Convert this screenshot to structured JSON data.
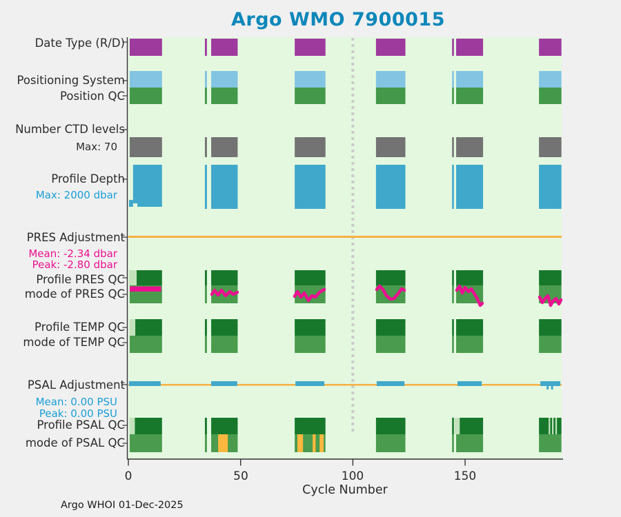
{
  "title": {
    "text": "Argo WMO 7900015",
    "color": "#0d87ba"
  },
  "footer": {
    "text": "Argo WHOI 01-Dec-2025"
  },
  "labels": {
    "date_type": "Date Type (R/D)",
    "positioning_system": "Positioning System",
    "position_qc": "Position QC",
    "number_ctd_levels": "Number CTD levels",
    "ctd_max": "Max: 70",
    "profile_depth": "Profile Depth",
    "depth_max": "Max: 2000 dbar",
    "pres_adjustment": "PRES Adjustment",
    "pres_mean": "Mean: -2.34 dbar",
    "pres_peak": "Peak: -2.80 dbar",
    "profile_pres_qc": "Profile PRES QC",
    "mode_pres_qc": "mode of PRES QC",
    "profile_temp_qc": "Profile TEMP QC",
    "mode_temp_qc": "mode of TEMP QC",
    "psal_adjustment": "PSAL Adjustment",
    "psal_mean": "Mean: 0.00 PSU",
    "psal_peak": "Peak: 0.00 PSU",
    "profile_psal_qc": "Profile PSAL QC",
    "mode_psal_qc": "mode of PSAL QC"
  },
  "colors": {
    "title": "#0d87ba",
    "magenta_text": "#ea1190",
    "blue_text": "#1b9ed6",
    "axis": "#333333"
  },
  "chart_data": {
    "type": "heatmap",
    "title": "Argo WMO 7900015",
    "xlabel": "Cycle Number",
    "x_ticks": [
      0,
      50,
      100,
      150
    ],
    "x_range": [
      0,
      193
    ],
    "grid": false,
    "plot_bg": "#e4f8e0",
    "reference_line": {
      "x_cycle": 100,
      "color": "#cbcbcb",
      "y": [
        55,
        628
      ]
    },
    "segments": [
      [
        0.6,
        15.0
      ],
      [
        34.1,
        35.0
      ],
      [
        36.9,
        48.7
      ],
      [
        74.1,
        87.8
      ],
      [
        110.3,
        123.4
      ],
      [
        144.2,
        145.0
      ],
      [
        146.0,
        158.0
      ],
      [
        182.9,
        192.9
      ]
    ],
    "bands": [
      {
        "id": "date-type",
        "label": "Date Type (R/D)",
        "row": "datetype",
        "color": "#9e3a9e"
      },
      {
        "id": "positioning-system",
        "label": "Positioning System",
        "row": "possys",
        "color": "#82c4e2"
      },
      {
        "id": "position-qc",
        "label": "Position QC",
        "row": "posqc",
        "color": "#43984a"
      },
      {
        "id": "number-ctd-levels",
        "label": "Number CTD levels",
        "max_levels": 70,
        "row": "ctd",
        "color": "#737373"
      },
      {
        "id": "profile-depth",
        "label": "Profile Depth",
        "max_dbar": 2000,
        "row": "depth",
        "color": "#40a8ca"
      },
      {
        "id": "profile-pres-qc",
        "label": "Profile PRES QC",
        "row": "presT",
        "color": "#17782c"
      },
      {
        "id": "mode-pres-qc",
        "label": "mode of PRES QC",
        "row": "presM",
        "color": "#4a9b4d"
      },
      {
        "id": "profile-temp-qc",
        "label": "Profile TEMP QC",
        "row": "tempT",
        "color": "#17782c"
      },
      {
        "id": "mode-temp-qc",
        "label": "mode of TEMP QC",
        "row": "tempM",
        "color": "#4a9b4d"
      },
      {
        "id": "profile-psal-qc",
        "label": "Profile PSAL QC",
        "row": "psalT",
        "color": "#17782c"
      },
      {
        "id": "mode-psal-qc",
        "label": "mode of PSAL QC",
        "row": "psalM",
        "color": "#4a9b4d"
      }
    ],
    "pale_color": "#c3e2bc",
    "pale_stripes": [
      {
        "row": "presT",
        "c": [
          0.3,
          3.7
        ]
      },
      {
        "row": "tempT",
        "c": [
          0.6,
          3.1
        ]
      },
      {
        "row": "psalT",
        "c": [
          0.6,
          2.9
        ]
      },
      {
        "row": "psalT",
        "c": [
          145.3,
          147.6
        ]
      },
      {
        "row": "psalT",
        "c": [
          187.2,
          187.9
        ]
      },
      {
        "row": "psalT",
        "c": [
          188.7,
          189.4
        ]
      },
      {
        "row": "psalT",
        "c": [
          190.2,
          190.9
        ]
      }
    ],
    "orange_color": "#fcb83f",
    "orange_stripes": [
      {
        "row": "psalM",
        "c": [
          40.0,
          44.3
        ]
      },
      {
        "row": "psalM",
        "c": [
          75.3,
          77.8
        ]
      },
      {
        "row": "psalM",
        "c": [
          82.1,
          83.4
        ]
      },
      {
        "row": "psalM",
        "c": [
          85.2,
          87.0
        ]
      }
    ],
    "depth_seg1": [
      {
        "c": [
          0.3,
          2.1
        ],
        "y": [
          290,
          300
        ]
      },
      {
        "c": [
          2.1,
          4.0
        ],
        "y": [
          239,
          295
        ]
      },
      {
        "c": [
          4.0,
          15.0
        ],
        "y": [
          239,
          300
        ]
      }
    ],
    "pres_adjustment": {
      "mean_dbar": -2.34,
      "peak_dbar": -2.8,
      "zero_line": {
        "y": 343.5,
        "color": "#f7b041",
        "width": 3
      },
      "line_color": "#ea1190",
      "flat_bar": {
        "x": [
          188,
          233.5
        ],
        "y": [
          415.5,
          423
        ]
      },
      "profile_paths": [
        [
          [
            307,
            427
          ],
          [
            311,
            421
          ],
          [
            316,
            428
          ],
          [
            321,
            421
          ],
          [
            327,
            429
          ],
          [
            333,
            423
          ],
          [
            338,
            427
          ],
          [
            344,
            424
          ]
        ],
        [
          [
            427,
            430
          ],
          [
            431,
            423
          ],
          [
            436,
            431
          ],
          [
            441,
            425
          ],
          [
            447,
            436
          ],
          [
            452,
            429
          ],
          [
            457,
            431
          ],
          [
            463,
            424
          ],
          [
            470,
            420
          ]
        ],
        [
          [
            546,
            420
          ],
          [
            550,
            415
          ],
          [
            555,
            420
          ],
          [
            560,
            429
          ],
          [
            566,
            434
          ],
          [
            571,
            433
          ],
          [
            577,
            426
          ],
          [
            582,
            419
          ],
          [
            586,
            421
          ]
        ],
        [
          [
            662,
            421
          ],
          [
            666,
            415
          ],
          [
            670,
            425
          ],
          [
            674,
            417
          ],
          [
            679,
            423
          ],
          [
            683,
            419
          ],
          [
            688,
            427
          ],
          [
            692,
            434
          ],
          [
            696,
            443
          ],
          [
            699,
            440
          ]
        ],
        [
          [
            782,
            431
          ],
          [
            786,
            439
          ],
          [
            790,
            433
          ],
          [
            794,
            429
          ],
          [
            798,
            443
          ],
          [
            802,
            436
          ],
          [
            806,
            433
          ],
          [
            810,
            441
          ],
          [
            813,
            435
          ]
        ]
      ]
    },
    "psal_adjustment": {
      "mean_psu": 0.0,
      "peak_psu": 0.0,
      "zero_line": {
        "y": 558.2,
        "color": "#f7b041",
        "width": 2.5
      },
      "value_color": "#42a8ca",
      "dash_y": [
        553,
        560
      ],
      "value_dashes": [
        [
          0.3,
          14.4
        ],
        [
          36.9,
          48.5
        ],
        [
          74.4,
          87.3
        ],
        [
          110.6,
          123.0
        ],
        [
          146.6,
          157.4
        ],
        [
          183.5,
          192.4
        ]
      ],
      "notches": [
        [
          186.3,
          187.2
        ],
        [
          188.3,
          189.2
        ]
      ]
    }
  }
}
